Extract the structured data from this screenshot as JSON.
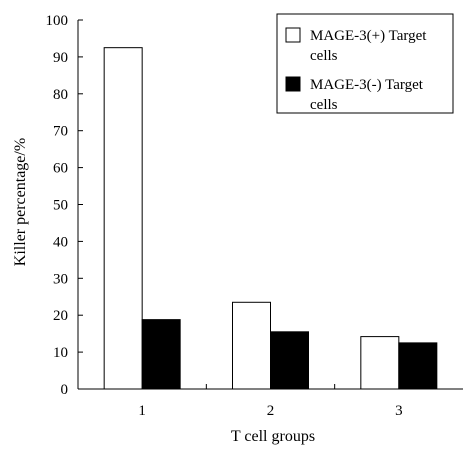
{
  "chart_data": {
    "type": "bar",
    "categories": [
      "1",
      "2",
      "3"
    ],
    "series": [
      {
        "name": "MAGE-3(+) Target cells",
        "values": [
          92.5,
          23.5,
          14.2
        ],
        "color": "#ffffff"
      },
      {
        "name": "MAGE-3(-) Target cells",
        "values": [
          18.8,
          15.5,
          12.5
        ],
        "color": "#000000"
      }
    ],
    "xlabel": "T cell groups",
    "ylabel": "Killer percentage/%",
    "ylim": [
      0,
      100
    ],
    "yticks": [
      0,
      10,
      20,
      30,
      40,
      50,
      60,
      70,
      80,
      90,
      100
    ],
    "grid": false,
    "legend": {
      "placement": "top-right",
      "entries": [
        {
          "line1": "MAGE-3(+) Target",
          "line2": "cells"
        },
        {
          "line1": "MAGE-3(-)  Target",
          "line2": "cells"
        }
      ]
    }
  }
}
